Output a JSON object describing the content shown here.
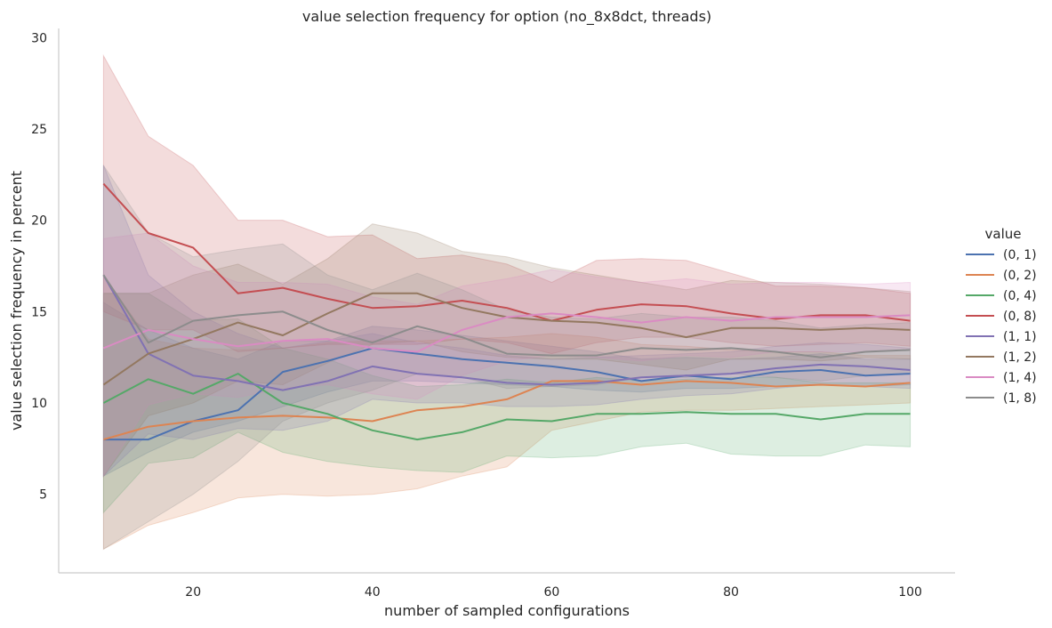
{
  "chart_data": {
    "type": "line",
    "title": "value selection frequency for option (no_8x8dct, threads)",
    "xlabel": "number of sampled configurations",
    "ylabel": "value selection frequency in percent",
    "xlim": [
      5,
      105
    ],
    "ylim": [
      0.7,
      30.5
    ],
    "xticks": [
      20,
      40,
      60,
      80,
      100
    ],
    "yticks": [
      5,
      10,
      15,
      20,
      25,
      30
    ],
    "grid": false,
    "legend_title": "value",
    "legend_position": "right",
    "x": [
      10,
      15,
      20,
      25,
      30,
      35,
      40,
      45,
      50,
      55,
      60,
      65,
      70,
      75,
      80,
      85,
      90,
      95,
      100
    ],
    "series": [
      {
        "name": "(0, 1)",
        "color": "#4c72b0",
        "values": [
          8.0,
          8.0,
          9.0,
          9.6,
          11.7,
          12.3,
          13.0,
          12.7,
          12.4,
          12.2,
          12.0,
          11.7,
          11.2,
          11.5,
          11.3,
          11.7,
          11.8,
          11.5,
          11.6
        ],
        "lower": [
          6.0,
          7.3,
          8.4,
          9.0,
          9.8,
          10.6,
          11.2,
          11.2,
          11.1,
          11.0,
          10.9,
          10.7,
          10.6,
          10.8,
          10.8,
          10.9,
          11.0,
          10.9,
          11.0
        ],
        "upper": [
          15.5,
          14.0,
          13.0,
          12.4,
          13.4,
          13.4,
          14.2,
          14.0,
          13.7,
          13.4,
          13.1,
          12.8,
          12.4,
          12.5,
          12.4,
          12.5,
          12.7,
          12.4,
          12.4
        ]
      },
      {
        "name": "(0, 2)",
        "color": "#dd8452",
        "values": [
          8.0,
          8.7,
          9.0,
          9.2,
          9.3,
          9.2,
          9.0,
          9.6,
          9.8,
          10.2,
          11.2,
          11.2,
          11.0,
          11.2,
          11.1,
          10.9,
          11.0,
          10.9,
          11.1
        ],
        "lower": [
          2.0,
          3.3,
          4.0,
          4.8,
          5.0,
          4.9,
          5.0,
          5.3,
          6.0,
          6.5,
          8.5,
          9.0,
          9.5,
          9.6,
          9.6,
          9.7,
          9.8,
          9.9,
          10.0
        ],
        "upper": [
          17.0,
          13.5,
          13.0,
          12.9,
          13.0,
          13.3,
          13.4,
          13.4,
          13.5,
          13.6,
          13.8,
          13.6,
          13.2,
          13.1,
          12.9,
          12.8,
          12.8,
          12.6,
          12.6
        ]
      },
      {
        "name": "(0, 4)",
        "color": "#55a868",
        "values": [
          10.0,
          11.3,
          10.5,
          11.6,
          10.0,
          9.4,
          8.5,
          8.0,
          8.4,
          9.1,
          9.0,
          9.4,
          9.4,
          9.5,
          9.4,
          9.4,
          9.1,
          9.4,
          9.4
        ],
        "lower": [
          4.0,
          6.7,
          7.0,
          8.4,
          7.3,
          6.8,
          6.5,
          6.3,
          6.2,
          7.1,
          7.0,
          7.1,
          7.6,
          7.8,
          7.2,
          7.1,
          7.1,
          7.7,
          7.6
        ],
        "upper": [
          16.0,
          16.0,
          14.5,
          14.6,
          13.0,
          12.4,
          11.5,
          10.9,
          11.0,
          11.3,
          11.1,
          11.4,
          11.2,
          11.3,
          11.4,
          11.4,
          11.1,
          11.1,
          11.1
        ]
      },
      {
        "name": "(0, 8)",
        "color": "#c44e52",
        "values": [
          22.0,
          19.3,
          18.5,
          16.0,
          16.3,
          15.7,
          15.2,
          15.3,
          15.6,
          15.2,
          14.5,
          15.1,
          15.4,
          15.3,
          14.9,
          14.6,
          14.8,
          14.8,
          14.5
        ],
        "lower": [
          15.0,
          14.0,
          14.0,
          12.8,
          13.0,
          13.2,
          13.2,
          13.2,
          13.5,
          13.3,
          12.7,
          13.3,
          13.6,
          13.6,
          13.3,
          13.1,
          13.2,
          13.3,
          13.1
        ],
        "upper": [
          29.0,
          24.6,
          23.0,
          20.0,
          20.0,
          19.1,
          19.2,
          17.9,
          18.1,
          17.6,
          16.6,
          17.8,
          17.9,
          17.8,
          17.1,
          16.4,
          16.4,
          16.3,
          16.0
        ]
      },
      {
        "name": "(1, 1)",
        "color": "#8172b3",
        "values": [
          17.0,
          12.7,
          11.5,
          11.2,
          10.7,
          11.2,
          12.0,
          11.6,
          11.4,
          11.1,
          11.0,
          11.1,
          11.4,
          11.5,
          11.6,
          11.9,
          12.1,
          12.0,
          11.8
        ],
        "lower": [
          6.0,
          8.3,
          8.0,
          8.6,
          8.5,
          9.0,
          10.2,
          10.0,
          10.0,
          9.8,
          9.8,
          9.9,
          10.2,
          10.4,
          10.5,
          10.8,
          11.0,
          10.9,
          10.8
        ],
        "upper": [
          23.0,
          17.0,
          15.0,
          13.8,
          13.0,
          13.4,
          13.8,
          13.3,
          13.0,
          12.6,
          12.4,
          12.5,
          12.6,
          12.7,
          12.8,
          13.1,
          13.3,
          13.2,
          13.0
        ]
      },
      {
        "name": "(1, 2)",
        "color": "#937860",
        "values": [
          11.0,
          12.7,
          13.5,
          14.4,
          13.7,
          14.9,
          16.0,
          16.0,
          15.2,
          14.7,
          14.5,
          14.4,
          14.1,
          13.6,
          14.1,
          14.1,
          14.0,
          14.1,
          14.0
        ],
        "lower": [
          6.0,
          9.3,
          10.0,
          11.2,
          11.0,
          12.2,
          13.2,
          13.4,
          12.8,
          12.5,
          12.4,
          12.4,
          12.1,
          11.8,
          12.4,
          12.4,
          12.3,
          12.5,
          12.4
        ],
        "upper": [
          16.0,
          16.0,
          17.0,
          17.6,
          16.5,
          17.9,
          19.8,
          19.3,
          18.3,
          18.0,
          17.4,
          17.0,
          16.6,
          16.2,
          16.7,
          16.6,
          16.5,
          16.3,
          16.1
        ]
      },
      {
        "name": "(1, 4)",
        "color": "#da8bc3",
        "values": [
          13.0,
          14.0,
          13.5,
          13.1,
          13.4,
          13.5,
          13.0,
          12.8,
          14.0,
          14.7,
          14.9,
          14.7,
          14.4,
          14.7,
          14.5,
          14.7,
          14.7,
          14.7,
          14.8
        ],
        "lower": [
          6.0,
          9.9,
          10.5,
          10.3,
          10.8,
          11.0,
          10.5,
          10.2,
          11.5,
          12.3,
          12.6,
          12.5,
          12.3,
          12.6,
          12.5,
          12.8,
          12.8,
          12.8,
          12.9
        ],
        "upper": [
          19.0,
          19.3,
          17.5,
          16.6,
          16.6,
          16.5,
          15.8,
          15.4,
          16.4,
          16.8,
          17.3,
          16.9,
          16.6,
          16.8,
          16.5,
          16.6,
          16.6,
          16.5,
          16.6
        ]
      },
      {
        "name": "(1, 8)",
        "color": "#8c8c8c",
        "values": [
          17.0,
          13.3,
          14.5,
          14.8,
          15.0,
          14.0,
          13.3,
          14.2,
          13.6,
          12.7,
          12.6,
          12.6,
          13.0,
          12.9,
          13.0,
          12.8,
          12.5,
          12.8,
          12.9
        ],
        "lower": [
          2.0,
          3.5,
          5.0,
          6.8,
          9.0,
          10.0,
          10.7,
          11.6,
          11.4,
          10.8,
          10.9,
          11.0,
          11.4,
          11.4,
          11.6,
          11.4,
          11.2,
          11.5,
          11.6
        ],
        "upper": [
          23.0,
          19.3,
          18.0,
          18.4,
          18.7,
          17.0,
          16.2,
          17.1,
          16.2,
          15.1,
          14.7,
          14.6,
          14.9,
          14.7,
          14.7,
          14.5,
          14.1,
          14.3,
          14.4
        ]
      }
    ]
  }
}
